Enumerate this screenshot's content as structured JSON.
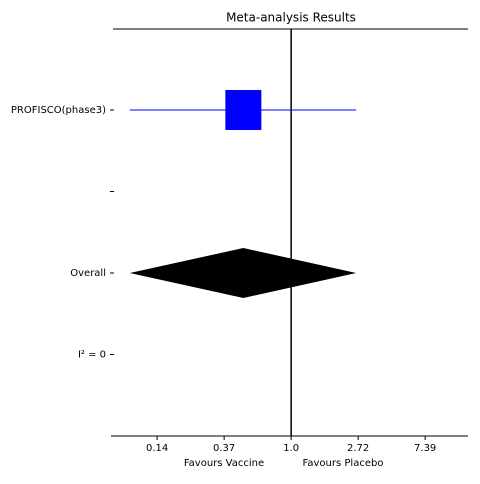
{
  "chart_data": {
    "type": "forest",
    "title": "Meta-analysis Results",
    "categories": [
      "PROFISCO(phase3)",
      null,
      "Overall",
      "I² = 0"
    ],
    "values": [
      0.49,
      null,
      0.49,
      null
    ],
    "lower": [
      0.09,
      null,
      0.09,
      null
    ],
    "upper": [
      2.64,
      null,
      2.64,
      null
    ],
    "markers": [
      "square",
      null,
      "diamond",
      null
    ],
    "color": "#0000ff",
    "summary_color": "#000000",
    "reference": 1,
    "xlabels": [
      "Favours Vaccine",
      "Favours Placebo"
    ],
    "log_x": true,
    "xlim": [
      0.068,
      14.0
    ],
    "xticks": [
      {
        "value": 0.1353,
        "label": "0.14"
      },
      {
        "value": 0.3679,
        "label": "0.37"
      },
      {
        "value": 1,
        "label": "1.0"
      },
      {
        "value": 2.718,
        "label": "2.72"
      },
      {
        "value": 7.389,
        "label": "7.39"
      }
    ]
  }
}
